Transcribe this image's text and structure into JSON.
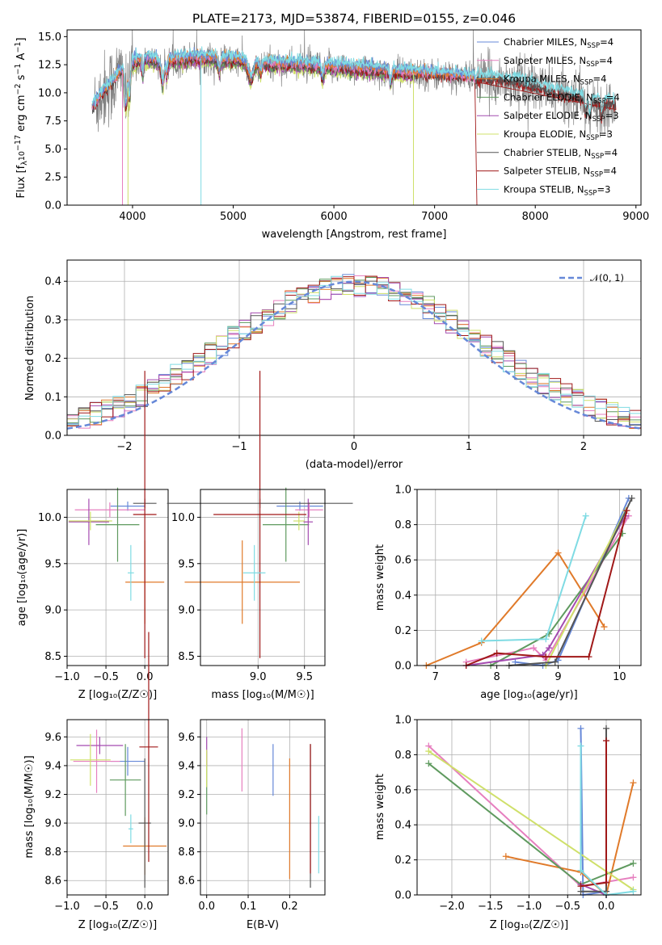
{
  "colors": {
    "Chabrier MILES": "#6688d8",
    "Salpeter MILES": "#e67fbf",
    "Kroupa MILES": "#e07a2a",
    "Chabrier ELODIE": "#5f9a5f",
    "Salpeter ELODIE": "#a44bb0",
    "Kroupa ELODIE": "#cfe06a",
    "Chabrier STELIB": "#555555",
    "Salpeter STELIB": "#a01818",
    "Kroupa STELIB": "#7fdbe3",
    "data": "#808080",
    "normal": "#6688d8"
  },
  "chart_data": [
    {
      "id": "spectrum",
      "type": "line",
      "title": "PLATE=2173, MJD=53874, FIBERID=0155, z=0.046",
      "xlabel": "wavelength [Angstrom, rest frame]",
      "ylabel_main": "Flux [f",
      "ylabel_sub": "λ",
      "ylabel_mid": "10",
      "ylabel_sup1": "−17",
      "ylabel_tail": " erg cm",
      "ylabel_sup2": "−2",
      "ylabel_tail2": " s",
      "ylabel_sup3": "−1",
      "ylabel_tail3": " A",
      "ylabel_sup4": "−1",
      "ylabel_end": "]",
      "xlim": [
        3350,
        9050
      ],
      "ylim": [
        0,
        15.6
      ],
      "xticks": [
        4000,
        5000,
        6000,
        7000,
        8000,
        9000
      ],
      "yticks": [
        0.0,
        2.5,
        5.0,
        7.5,
        10.0,
        12.5,
        15.0
      ],
      "grid": false,
      "legend_position": "upper-right",
      "legend": [
        {
          "name": "Chabrier MILES",
          "nssp": "4"
        },
        {
          "name": "Salpeter MILES",
          "nssp": "4"
        },
        {
          "name": "Kroupa MILES",
          "nssp": "4"
        },
        {
          "name": "Chabrier ELODIE",
          "nssp": "4"
        },
        {
          "name": "Salpeter ELODIE",
          "nssp": "3"
        },
        {
          "name": "Kroupa ELODIE",
          "nssp": "3"
        },
        {
          "name": "Chabrier STELIB",
          "nssp": "4"
        },
        {
          "name": "Salpeter STELIB",
          "nssp": "4"
        },
        {
          "name": "Kroupa STELIB",
          "nssp": "3"
        }
      ],
      "continuum": {
        "x": [
          3620,
          3700,
          3800,
          3900,
          4000,
          4100,
          4200,
          4300,
          4400,
          4600,
          4800,
          5000,
          5300,
          5600,
          6000,
          6500,
          7000,
          7400,
          7800,
          8200,
          8500,
          8750
        ],
        "y": [
          8.8,
          10.0,
          10.8,
          12.0,
          12.6,
          13.0,
          12.9,
          12.6,
          12.9,
          13.1,
          13.0,
          12.9,
          12.6,
          12.5,
          12.3,
          11.9,
          11.6,
          11.3,
          11.0,
          10.0,
          9.4,
          9.0
        ]
      },
      "model_ranges": {
        "MILES": [
          3600,
          7400
        ],
        "ELODIE": [
          3900,
          6800
        ],
        "STELIB": [
          3600,
          8800
        ]
      }
    },
    {
      "id": "residuals",
      "type": "histogram",
      "xlabel": "(data-model)/error",
      "ylabel": "Normed distribution",
      "xlim": [
        -2.5,
        2.5
      ],
      "ylim": [
        0,
        0.455
      ],
      "xticks": [
        -2,
        -1,
        0,
        1,
        2
      ],
      "yticks": [
        0.0,
        0.1,
        0.2,
        0.3,
        0.4
      ],
      "grid": true,
      "legend_position": "upper-right",
      "legend_label": "𝒩(0, 1)",
      "bin_width": 0.1
    },
    {
      "id": "age_vs_Z",
      "type": "errorbar",
      "xlabel": "Z [log₁₀(Z/Z☉)]",
      "ylabel": "age  [log₁₀(age/yr)]",
      "xlim": [
        -1.0,
        0.3
      ],
      "ylim": [
        8.4,
        10.3
      ],
      "xticks": [
        -1.0,
        -0.5,
        0.0
      ],
      "yticks": [
        8.5,
        9.0,
        9.5,
        10.0
      ],
      "grid": true,
      "points": [
        {
          "series": "Chabrier MILES",
          "x": -0.22,
          "xerr": 0.22,
          "y": 10.12,
          "yerr": 0.05
        },
        {
          "series": "Salpeter MILES",
          "x": -0.45,
          "xerr": 0.45,
          "y": 10.08,
          "yerr": 0.08
        },
        {
          "series": "Kroupa MILES",
          "x": 0.0,
          "xerr": 0.25,
          "y": 9.3,
          "yerr": 0.45
        },
        {
          "series": "Chabrier ELODIE",
          "x": -0.35,
          "xerr": 0.28,
          "y": 9.92,
          "yerr": 0.4
        },
        {
          "series": "Salpeter ELODIE",
          "x": -0.72,
          "xerr": 0.26,
          "y": 9.95,
          "yerr": 0.25
        },
        {
          "series": "Kroupa ELODIE",
          "x": -0.7,
          "xerr": 0.28,
          "y": 9.96,
          "yerr": 0.1
        },
        {
          "series": "Chabrier STELIB",
          "x": 0.0,
          "xerr": 0.15,
          "y": 10.15,
          "yerr": 0.05
        },
        {
          "series": "Salpeter STELIB",
          "x": 0.0,
          "xerr": 0.15,
          "y": 10.03,
          "yerr": 1.55
        },
        {
          "series": "Kroupa STELIB",
          "x": -0.18,
          "xerr": 0.04,
          "y": 9.4,
          "yerr": 0.3
        }
      ]
    },
    {
      "id": "age_vs_mass",
      "type": "errorbar",
      "xlabel": "mass [log₁₀(M/M☉)]",
      "ylabel": "",
      "xlim": [
        8.38,
        9.72
      ],
      "ylim": [
        8.4,
        10.3
      ],
      "xticks": [
        9.0,
        9.5
      ],
      "yticks": [
        8.5,
        9.0,
        9.5,
        10.0
      ],
      "grid": true,
      "points": [
        {
          "series": "Chabrier MILES",
          "x": 9.45,
          "xerr": 0.25,
          "y": 10.12,
          "yerr": 0.05
        },
        {
          "series": "Salpeter MILES",
          "x": 9.55,
          "xerr": 0.15,
          "y": 10.08,
          "yerr": 0.08
        },
        {
          "series": "Kroupa MILES",
          "x": 8.83,
          "xerr": 0.62,
          "y": 9.3,
          "yerr": 0.45
        },
        {
          "series": "Chabrier ELODIE",
          "x": 9.3,
          "xerr": 0.25,
          "y": 9.92,
          "yerr": 0.4
        },
        {
          "series": "Salpeter ELODIE",
          "x": 9.54,
          "xerr": 0.05,
          "y": 9.95,
          "yerr": 0.25
        },
        {
          "series": "Kroupa ELODIE",
          "x": 9.44,
          "xerr": 0.06,
          "y": 9.96,
          "yerr": 0.1
        },
        {
          "series": "Chabrier STELIB",
          "x": 9.02,
          "xerr": 1.0,
          "y": 10.15,
          "yerr": 0.05
        },
        {
          "series": "Salpeter STELIB",
          "x": 9.02,
          "xerr": 0.5,
          "y": 10.03,
          "yerr": 1.55
        },
        {
          "series": "Kroupa STELIB",
          "x": 8.96,
          "xerr": 0.12,
          "y": 9.4,
          "yerr": 0.3
        }
      ]
    },
    {
      "id": "massweight_vs_age",
      "type": "line",
      "xlabel": "age  [log₁₀(age/yr)]",
      "ylabel": "mass weight",
      "xlim": [
        6.7,
        10.35
      ],
      "ylim": [
        0,
        1.0
      ],
      "xticks": [
        7,
        8,
        9,
        10
      ],
      "yticks": [
        0.0,
        0.2,
        0.4,
        0.6,
        0.8,
        1.0
      ],
      "grid": true,
      "series": [
        {
          "name": "Chabrier MILES",
          "x": [
            8.3,
            8.75,
            9.0,
            10.15
          ],
          "y": [
            0.02,
            0.0,
            0.03,
            0.95
          ]
        },
        {
          "name": "Salpeter MILES",
          "x": [
            7.5,
            8.6,
            8.8,
            10.15
          ],
          "y": [
            0.02,
            0.1,
            0.03,
            0.85
          ]
        },
        {
          "name": "Kroupa MILES",
          "x": [
            6.85,
            7.75,
            9.0,
            9.75
          ],
          "y": [
            0.0,
            0.13,
            0.64,
            0.22
          ]
        },
        {
          "name": "Chabrier ELODIE",
          "x": [
            7.9,
            8.85,
            10.05
          ],
          "y": [
            0.0,
            0.18,
            0.75
          ]
        },
        {
          "name": "Salpeter ELODIE",
          "x": [
            7.5,
            8.75,
            8.85,
            10.1
          ],
          "y": [
            0.0,
            0.06,
            0.1,
            0.85
          ]
        },
        {
          "name": "Kroupa ELODIE",
          "x": [
            8.8,
            10.1
          ],
          "y": [
            0.0,
            0.88
          ]
        },
        {
          "name": "Chabrier STELIB",
          "x": [
            8.2,
            8.95,
            10.2
          ],
          "y": [
            0.0,
            0.02,
            0.95
          ]
        },
        {
          "name": "Salpeter STELIB",
          "x": [
            7.5,
            8.0,
            8.8,
            9.5,
            10.12
          ],
          "y": [
            0.0,
            0.07,
            0.05,
            0.05,
            0.88
          ]
        },
        {
          "name": "Kroupa STELIB",
          "x": [
            7.75,
            8.8,
            9.45
          ],
          "y": [
            0.14,
            0.15,
            0.85
          ]
        }
      ]
    },
    {
      "id": "mass_vs_Z",
      "type": "errorbar",
      "xlabel": "Z [log₁₀(Z/Z☉)]",
      "ylabel": "mass [log₁₀(M/M☉)]",
      "xlim": [
        -1.0,
        0.3
      ],
      "ylim": [
        8.5,
        9.72
      ],
      "xticks": [
        -1.0,
        -0.5,
        0.0
      ],
      "yticks": [
        8.6,
        8.8,
        9.0,
        9.2,
        9.4,
        9.6
      ],
      "grid": true,
      "points": [
        {
          "series": "Chabrier MILES",
          "x": -0.22,
          "xerr": 0.22,
          "y": 9.43,
          "yerr": 0.1
        },
        {
          "series": "Salpeter MILES",
          "x": -0.62,
          "xerr": 0.3,
          "y": 9.43,
          "yerr": 0.22
        },
        {
          "series": "Kroupa MILES",
          "x": 0.0,
          "xerr": 0.28,
          "y": 8.84,
          "yerr": 0.2
        },
        {
          "series": "Chabrier ELODIE",
          "x": -0.25,
          "xerr": 0.2,
          "y": 9.3,
          "yerr": 0.25
        },
        {
          "series": "Salpeter ELODIE",
          "x": -0.58,
          "xerr": 0.3,
          "y": 9.54,
          "yerr": 0.06
        },
        {
          "series": "Kroupa ELODIE",
          "x": -0.7,
          "xerr": 0.26,
          "y": 9.44,
          "yerr": 0.18
        },
        {
          "series": "Chabrier STELIB",
          "x": 0.0,
          "xerr": 0.08,
          "y": 9.0,
          "yerr": 0.45
        },
        {
          "series": "Salpeter STELIB",
          "x": 0.05,
          "xerr": 0.12,
          "y": 9.53,
          "yerr": 0.8
        },
        {
          "series": "Kroupa STELIB",
          "x": -0.18,
          "xerr": 0.03,
          "y": 8.96,
          "yerr": 0.1
        }
      ]
    },
    {
      "id": "mass_vs_EBV",
      "type": "errorbar",
      "xlabel": "E(B-V)",
      "ylabel": "",
      "xlim": [
        -0.015,
        0.285
      ],
      "ylim": [
        8.5,
        9.72
      ],
      "xticks": [
        0.0,
        0.1,
        0.2
      ],
      "yticks": [
        8.6,
        8.8,
        9.0,
        9.2,
        9.4,
        9.6
      ],
      "grid": true,
      "points": [
        {
          "series": "Chabrier MILES",
          "x": 0.16,
          "y": 9.37,
          "yerr": 0.18
        },
        {
          "series": "Salpeter MILES",
          "x": 0.085,
          "y": 9.44,
          "yerr": 0.22
        },
        {
          "series": "Kroupa MILES",
          "x": 0.2,
          "y": 9.03,
          "yerr": 0.42
        },
        {
          "series": "Chabrier ELODIE",
          "x": 0.0,
          "y": 9.28,
          "yerr": 0.22
        },
        {
          "series": "Salpeter ELODIE",
          "x": 0.0,
          "y": 9.5,
          "yerr": 0.1
        },
        {
          "series": "Kroupa ELODIE",
          "x": 0.0,
          "y": 9.38,
          "yerr": 0.13
        },
        {
          "series": "Chabrier STELIB",
          "x": 0.25,
          "y": 9.05,
          "yerr": 0.5
        },
        {
          "series": "Salpeter STELIB",
          "x": 0.25,
          "y": 9.1,
          "yerr": 0.45
        },
        {
          "series": "Kroupa STELIB",
          "x": 0.27,
          "y": 8.85,
          "yerr": 0.2
        }
      ]
    },
    {
      "id": "massweight_vs_Z",
      "type": "line",
      "xlabel": "Z [log₁₀(Z/Z☉)]",
      "ylabel": "mass weight",
      "xlim": [
        -2.45,
        0.45
      ],
      "ylim": [
        0,
        1.0
      ],
      "xticks": [
        -2.0,
        -1.5,
        -1.0,
        -0.5,
        0.0
      ],
      "yticks": [
        0.0,
        0.2,
        0.4,
        0.6,
        0.8,
        1.0
      ],
      "grid": true,
      "series": [
        {
          "name": "Chabrier MILES",
          "x": [
            -0.33,
            -0.3,
            0.0,
            0.0
          ],
          "y": [
            0.95,
            0.0,
            0.02,
            0.0
          ]
        },
        {
          "name": "Salpeter MILES",
          "x": [
            -2.3,
            -0.33,
            0.35
          ],
          "y": [
            0.85,
            0.05,
            0.1
          ]
        },
        {
          "name": "Kroupa MILES",
          "x": [
            -1.3,
            -0.33,
            0.0,
            0.35
          ],
          "y": [
            0.22,
            0.13,
            0.0,
            0.64
          ]
        },
        {
          "name": "Chabrier ELODIE",
          "x": [
            -2.3,
            -0.33,
            0.35
          ],
          "y": [
            0.75,
            0.06,
            0.18
          ]
        },
        {
          "name": "Salpeter ELODIE",
          "x": [
            -0.33,
            0.0
          ],
          "y": [
            0.06,
            0.0
          ]
        },
        {
          "name": "Kroupa ELODIE",
          "x": [
            -2.3,
            0.35
          ],
          "y": [
            0.82,
            0.03
          ]
        },
        {
          "name": "Chabrier STELIB",
          "x": [
            -0.33,
            0.0,
            0.0
          ],
          "y": [
            0.02,
            0.02,
            0.95
          ]
        },
        {
          "name": "Salpeter STELIB",
          "x": [
            -0.33,
            0.0,
            0.0
          ],
          "y": [
            0.05,
            0.07,
            0.88
          ]
        },
        {
          "name": "Kroupa STELIB",
          "x": [
            -0.33,
            -0.33,
            0.0,
            0.35
          ],
          "y": [
            0.85,
            0.14,
            0.0,
            0.02
          ]
        }
      ]
    }
  ]
}
